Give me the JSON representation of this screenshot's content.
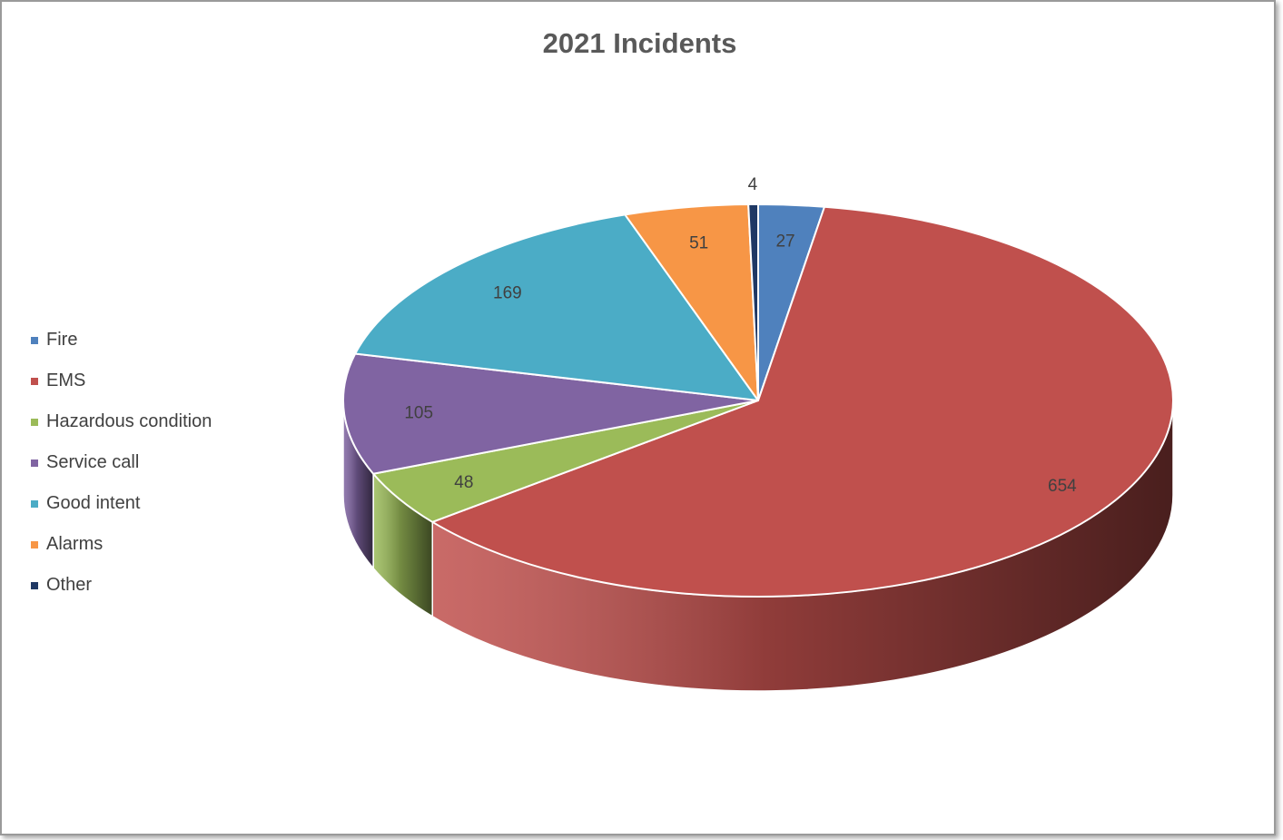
{
  "chart_data": {
    "type": "pie",
    "title": "2021 Incidents",
    "categories": [
      "Fire",
      "EMS",
      "Hazardous condition",
      "Service call",
      "Good intent",
      "Alarms",
      "Other"
    ],
    "values": [
      27,
      654,
      48,
      105,
      169,
      51,
      4
    ],
    "data_labels": [
      "27",
      "654",
      "48",
      "105",
      "169",
      "51",
      "4"
    ],
    "colors": [
      "#4F81BD",
      "#C0504D",
      "#9BBB59",
      "#8064A2",
      "#4BACC6",
      "#F79646",
      "#1F3864"
    ],
    "legend_position": "left",
    "style": "3d"
  }
}
